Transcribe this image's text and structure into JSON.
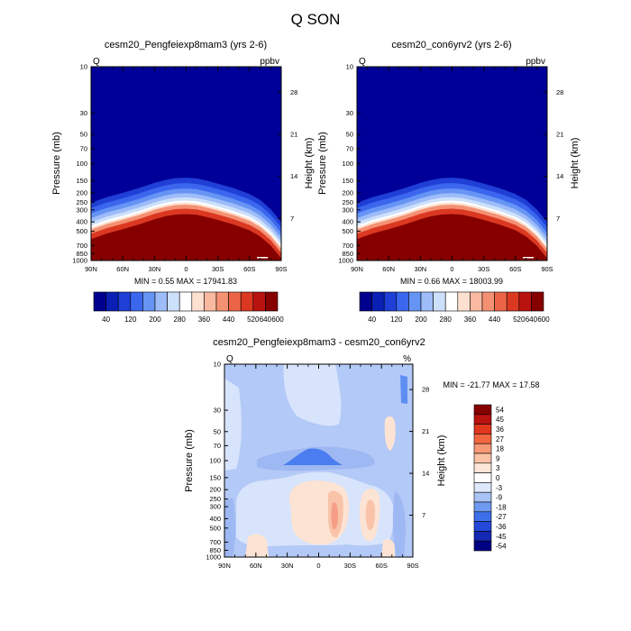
{
  "title": "Q SON",
  "chart_data": [
    {
      "type": "heatmap",
      "title": "cesm20_Pengfeiexp8mam3 (yrs 2-6)",
      "left_label": "Q",
      "right_label": "ppbv",
      "xlabel": "",
      "ylabel": "Pressure (mb)",
      "y2label": "Height (km)",
      "x_ticks": [
        "90N",
        "60N",
        "30N",
        "0",
        "30S",
        "60S",
        "90S"
      ],
      "y_ticks": [
        "10",
        "30",
        "50",
        "70",
        "100",
        "150",
        "200",
        "250",
        "300",
        "400",
        "500",
        "700",
        "850",
        "1000"
      ],
      "y2_ticks": [
        "28",
        "21",
        "14",
        "7"
      ],
      "stats": "MIN =   0.55  MAX = 17941.83",
      "colorbar": {
        "labels": [
          "40",
          "120",
          "200",
          "280",
          "360",
          "440",
          "520",
          "600",
          "640"
        ]
      },
      "surface_profile": [
        {
          "lat": 90,
          "p": 480
        },
        {
          "lat": 75,
          "p": 420
        },
        {
          "lat": 60,
          "p": 380
        },
        {
          "lat": 45,
          "p": 340
        },
        {
          "lat": 30,
          "p": 300
        },
        {
          "lat": 20,
          "p": 280
        },
        {
          "lat": 10,
          "p": 268
        },
        {
          "lat": 0,
          "p": 265
        },
        {
          "lat": -10,
          "p": 270
        },
        {
          "lat": -20,
          "p": 285
        },
        {
          "lat": -30,
          "p": 305
        },
        {
          "lat": -45,
          "p": 340
        },
        {
          "lat": -60,
          "p": 390
        },
        {
          "lat": -70,
          "p": 450
        },
        {
          "lat": -80,
          "p": 560
        },
        {
          "lat": -90,
          "p": 760
        }
      ]
    },
    {
      "type": "heatmap",
      "title": "cesm20_con6yrv2 (yrs 2-6)",
      "left_label": "Q",
      "right_label": "ppbv",
      "xlabel": "",
      "ylabel": "Pressure (mb)",
      "y2label": "Height (km)",
      "x_ticks": [
        "90N",
        "60N",
        "30N",
        "0",
        "30S",
        "60S",
        "90S"
      ],
      "y_ticks": [
        "10",
        "30",
        "50",
        "70",
        "100",
        "150",
        "200",
        "250",
        "300",
        "400",
        "500",
        "700",
        "850",
        "1000"
      ],
      "y2_ticks": [
        "28",
        "21",
        "14",
        "7"
      ],
      "stats": "MIN =   0.66  MAX = 18003.99",
      "colorbar": {
        "labels": [
          "40",
          "120",
          "200",
          "280",
          "360",
          "440",
          "520",
          "600",
          "640"
        ]
      },
      "surface_profile": [
        {
          "lat": 90,
          "p": 480
        },
        {
          "lat": 75,
          "p": 420
        },
        {
          "lat": 60,
          "p": 380
        },
        {
          "lat": 45,
          "p": 340
        },
        {
          "lat": 30,
          "p": 300
        },
        {
          "lat": 20,
          "p": 280
        },
        {
          "lat": 10,
          "p": 268
        },
        {
          "lat": 0,
          "p": 265
        },
        {
          "lat": -10,
          "p": 270
        },
        {
          "lat": -20,
          "p": 285
        },
        {
          "lat": -30,
          "p": 305
        },
        {
          "lat": -45,
          "p": 340
        },
        {
          "lat": -60,
          "p": 390
        },
        {
          "lat": -70,
          "p": 450
        },
        {
          "lat": -80,
          "p": 560
        },
        {
          "lat": -90,
          "p": 760
        }
      ]
    },
    {
      "type": "heatmap",
      "title": "cesm20_Pengfeiexp8mam3 - cesm20_con6yrv2",
      "left_label": "Q",
      "right_label": "%",
      "xlabel": "",
      "ylabel": "Pressure (mb)",
      "y2label": "Height (km)",
      "x_ticks": [
        "90N",
        "60N",
        "30N",
        "0",
        "30S",
        "60S",
        "90S"
      ],
      "y_ticks": [
        "10",
        "30",
        "50",
        "70",
        "100",
        "150",
        "200",
        "250",
        "300",
        "400",
        "500",
        "700",
        "850",
        "1000"
      ],
      "y2_ticks": [
        "28",
        "21",
        "14",
        "7"
      ],
      "stats": "MIN = -21.77  MAX =  17.58",
      "colorbar": {
        "labels": [
          "54",
          "45",
          "36",
          "27",
          "18",
          "9",
          "3",
          "0",
          "-3",
          "-9",
          "-18",
          "-27",
          "-36",
          "-45",
          "-54"
        ]
      }
    }
  ]
}
